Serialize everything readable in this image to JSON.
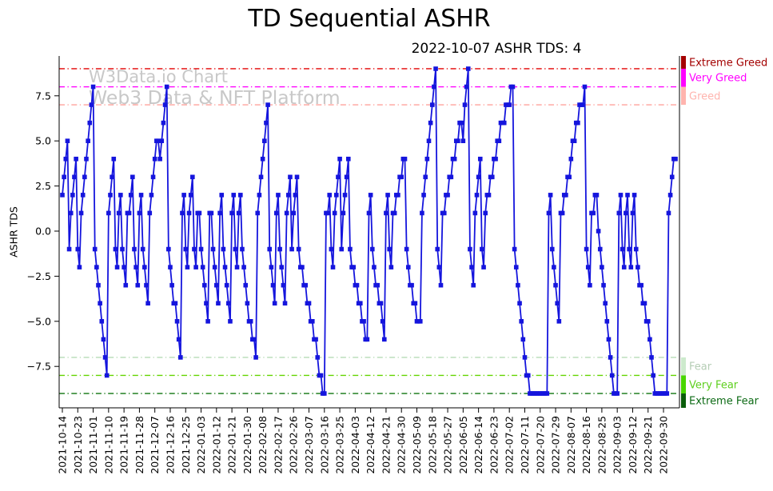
{
  "watermark": {
    "line1": "W3Data.io Chart",
    "line2": "Web3 Data & NFT Platform"
  },
  "chart_data": {
    "type": "line",
    "title": "TD Sequential ASHR",
    "subtitle": "2022-10-07 ASHR TDS: 4",
    "ylabel": "ASHR TDS",
    "series_name": "ASHR TDS",
    "series_color": "#1515dd",
    "marker": "square",
    "grid": false,
    "legend_position": "none",
    "ylim": [
      -9.8,
      9.7
    ],
    "ytick_values": [
      -7.5,
      -5.0,
      -2.5,
      0.0,
      2.5,
      5.0,
      7.5
    ],
    "ytick_labels": [
      "−7.5",
      "−5.0",
      "−2.5",
      "0.0",
      "2.5",
      "5.0",
      "7.5"
    ],
    "x_tick_every": 9,
    "x_labels": [
      "2021-10-14",
      "2021-10-23",
      "2021-11-01",
      "2021-11-10",
      "2021-11-19",
      "2021-11-28",
      "2021-12-07",
      "2021-12-16",
      "2021-12-25",
      "2022-01-03",
      "2022-01-12",
      "2022-01-21",
      "2022-01-30",
      "2022-02-08",
      "2022-02-17",
      "2022-02-26",
      "2022-03-07",
      "2022-03-16",
      "2022-03-25",
      "2022-04-03",
      "2022-04-12",
      "2022-04-21",
      "2022-04-30",
      "2022-05-09",
      "2022-05-18",
      "2022-05-27",
      "2022-06-05",
      "2022-06-14",
      "2022-06-23",
      "2022-07-02",
      "2022-07-11",
      "2022-07-20",
      "2022-07-29",
      "2022-08-07",
      "2022-08-16",
      "2022-08-25",
      "2022-09-03",
      "2022-09-12",
      "2022-09-21",
      "2022-09-30"
    ],
    "values": [
      2,
      3,
      4,
      5,
      -1,
      1,
      2,
      3,
      4,
      -1,
      -2,
      1,
      2,
      3,
      4,
      5,
      6,
      7,
      8,
      -1,
      -2,
      -3,
      -4,
      -5,
      -6,
      -7,
      -8,
      1,
      2,
      3,
      4,
      -1,
      -2,
      1,
      2,
      -1,
      -2,
      -3,
      1,
      1,
      2,
      3,
      -1,
      -2,
      -3,
      1,
      2,
      -1,
      -2,
      -3,
      -4,
      1,
      2,
      3,
      4,
      5,
      5,
      4,
      5,
      6,
      7,
      8,
      -1,
      -2,
      -3,
      -4,
      -4,
      -5,
      -6,
      -7,
      1,
      2,
      -1,
      -2,
      1,
      2,
      3,
      -1,
      -2,
      1,
      1,
      -1,
      -2,
      -3,
      -4,
      -5,
      1,
      1,
      -1,
      -2,
      -3,
      -4,
      1,
      2,
      -1,
      -2,
      -3,
      -4,
      -5,
      1,
      2,
      -1,
      -2,
      1,
      2,
      -1,
      -2,
      -3,
      -4,
      -5,
      -5,
      -6,
      -6,
      -7,
      1,
      2,
      3,
      4,
      5,
      6,
      7,
      -1,
      -2,
      -3,
      -4,
      1,
      2,
      -1,
      -2,
      -3,
      -4,
      1,
      2,
      3,
      -1,
      1,
      2,
      3,
      -1,
      -2,
      -2,
      -3,
      -3,
      -4,
      -4,
      -5,
      -5,
      -6,
      -6,
      -7,
      -8,
      -8,
      -9,
      -9,
      1,
      1,
      2,
      -1,
      -2,
      1,
      2,
      3,
      4,
      -1,
      1,
      2,
      3,
      4,
      -1,
      -2,
      -2,
      -3,
      -3,
      -4,
      -4,
      -5,
      -5,
      -6,
      -6,
      1,
      2,
      -1,
      -2,
      -3,
      -3,
      -4,
      -4,
      -5,
      -6,
      1,
      2,
      -1,
      -2,
      1,
      1,
      2,
      2,
      3,
      3,
      4,
      4,
      -1,
      -2,
      -3,
      -3,
      -4,
      -4,
      -5,
      -5,
      -5,
      1,
      2,
      3,
      4,
      5,
      6,
      7,
      8,
      9,
      -1,
      -2,
      -3,
      1,
      1,
      2,
      2,
      3,
      3,
      4,
      4,
      5,
      5,
      6,
      6,
      5,
      7,
      8,
      9,
      -1,
      -2,
      -3,
      1,
      2,
      3,
      4,
      -1,
      -2,
      1,
      2,
      2,
      3,
      3,
      4,
      4,
      5,
      5,
      6,
      6,
      6,
      7,
      7,
      7,
      8,
      8,
      -1,
      -2,
      -3,
      -4,
      -5,
      -6,
      -7,
      -8,
      -8,
      -9,
      -9,
      -9,
      -9,
      -9,
      -9,
      -9,
      -9,
      -9,
      -9,
      -9,
      1,
      2,
      -1,
      -2,
      -3,
      -4,
      -5,
      1,
      1,
      2,
      2,
      3,
      3,
      4,
      5,
      5,
      6,
      6,
      7,
      7,
      7,
      8,
      -1,
      -2,
      -3,
      1,
      1,
      2,
      2,
      0,
      -1,
      -2,
      -3,
      -4,
      -5,
      -6,
      -7,
      -8,
      -9,
      -9,
      -9,
      1,
      2,
      -1,
      -2,
      1,
      2,
      -1,
      -2,
      1,
      2,
      -1,
      -2,
      -3,
      -3,
      -4,
      -4,
      -5,
      -5,
      -6,
      -7,
      -8,
      -9,
      -9,
      -9,
      -9,
      -9,
      -9,
      -9,
      -9,
      1,
      2,
      3,
      4,
      4
    ],
    "zones": [
      {
        "id": "extreme-greed",
        "label": "Extreme Greed",
        "level": 9,
        "line_color": "#e30000",
        "band": [
          99,
          9
        ],
        "band_color": "#a40000",
        "label_color": "#a30000"
      },
      {
        "id": "very-greed",
        "label": "Very Greed",
        "level": 8,
        "line_color": "#ff00ff",
        "band": [
          9,
          8
        ],
        "band_color": "#ff00ff",
        "label_color": "#ff00ff"
      },
      {
        "id": "greed",
        "label": "Greed",
        "level": 7,
        "line_color": "#ffa29c",
        "band": [
          8,
          7
        ],
        "band_color": "#ffb4ae",
        "label_color": "#ffb4ae"
      },
      {
        "id": "fear",
        "label": "Fear",
        "level": -7,
        "line_color": "#b6dcb6",
        "band": [
          -7,
          -8
        ],
        "band_color": "#cdeacd",
        "label_color": "#b5cdb5"
      },
      {
        "id": "very-fear",
        "label": "Very Fear",
        "level": -8,
        "line_color": "#63d400",
        "band": [
          -8,
          -9
        ],
        "band_color": "#49d600",
        "label_color": "#5ecf1e"
      },
      {
        "id": "extreme-fear",
        "label": "Extreme Fear",
        "level": -9,
        "line_color": "#0e750e",
        "band": [
          -9,
          -99
        ],
        "band_color": "#0a5d0a",
        "label_color": "#0e6b16"
      }
    ]
  }
}
